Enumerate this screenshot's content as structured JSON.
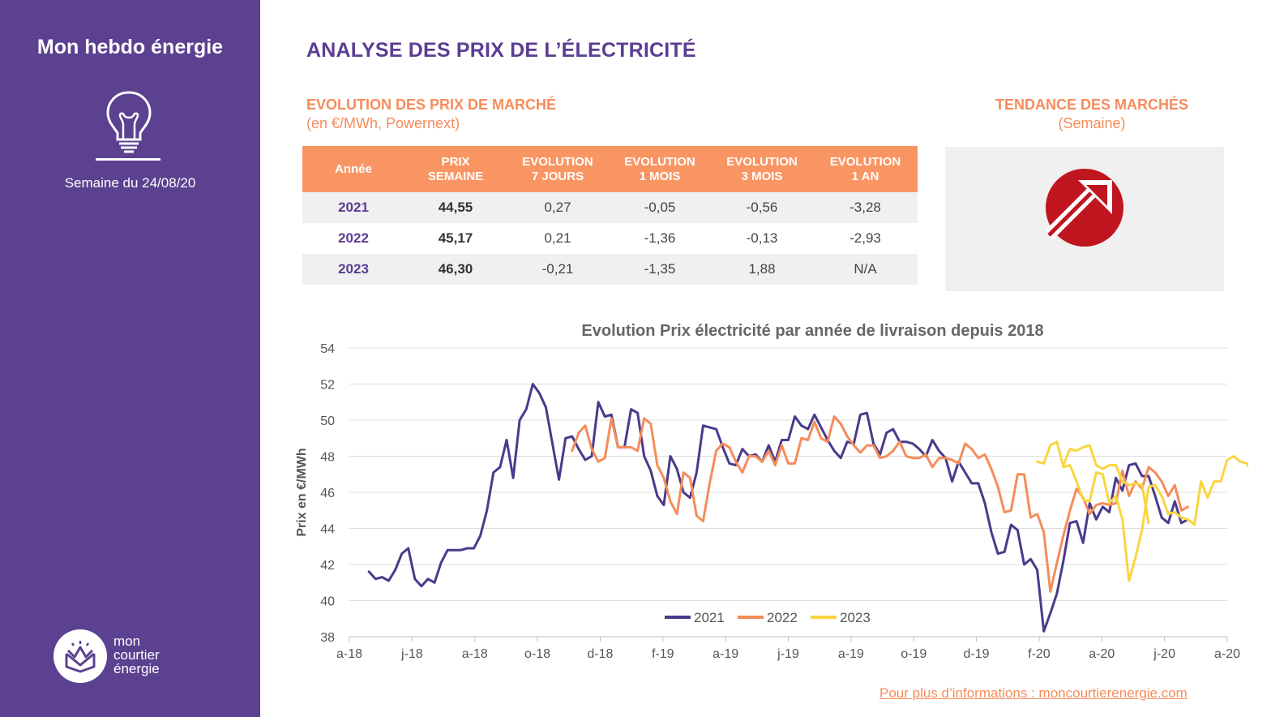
{
  "sidebar": {
    "title": "Mon hebdo énergie",
    "week_label": "Semaine du 24/08/20",
    "logo_lines": [
      "mon",
      "courtier",
      "énergie"
    ],
    "icons": {
      "bulb": "lightbulb-icon",
      "logo": "envelope-crown-logo-icon"
    }
  },
  "header": {
    "title": "ANALYSE DES PRIX DE L’ÉLECTRICITÉ"
  },
  "market": {
    "title": "EVOLUTION DES PRIX DE MARCHÉ",
    "subtitle": "(en €/MWh, Powernext)",
    "columns": [
      [
        "Année"
      ],
      [
        "PRIX",
        "SEMAINE"
      ],
      [
        "EVOLUTION",
        "7 JOURS"
      ],
      [
        "EVOLUTION",
        "1 MOIS"
      ],
      [
        "EVOLUTION",
        "3 MOIS"
      ],
      [
        "EVOLUTION",
        "1 AN"
      ]
    ],
    "rows": [
      [
        "2021",
        "44,55",
        "0,27",
        "-0,05",
        "-0,56",
        "-3,28"
      ],
      [
        "2022",
        "45,17",
        "0,21",
        "-1,36",
        "-0,13",
        "-2,93"
      ],
      [
        "2023",
        "46,30",
        "-0,21",
        "-1,35",
        "1,88",
        "N/A"
      ]
    ]
  },
  "trend": {
    "title": "TENDANCE DES MARCHÉS",
    "subtitle": "(Semaine)",
    "direction": "up",
    "icon": "arrow-up-right-icon",
    "color": "#c0161f"
  },
  "footer": {
    "link_text": "Pour plus d’informations : moncourtierenergie.com"
  },
  "colors": {
    "sidebar": "#5b4190",
    "title": "#5b3d93",
    "accent": "#f58c5b",
    "table_header": "#f99563",
    "series_2021": "#4a3a8c",
    "series_2022": "#f58c5b",
    "series_2023": "#f9d541"
  },
  "chart_data": {
    "type": "line",
    "title": "Evolution Prix électricité par année de livraison depuis 2018",
    "xlabel": "",
    "ylabel": "Prix en €/MWh",
    "ylim": [
      38,
      54
    ],
    "yticks": [
      38,
      40,
      42,
      44,
      46,
      48,
      50,
      52,
      54
    ],
    "xticks": [
      "a-18",
      "j-18",
      "a-18",
      "o-18",
      "d-18",
      "f-19",
      "a-19",
      "j-19",
      "a-19",
      "o-19",
      "d-19",
      "f-20",
      "a-20",
      "j-20",
      "a-20"
    ],
    "x_range": [
      0,
      134
    ],
    "grid": true,
    "legend_position": "bottom",
    "series": [
      {
        "name": "2021",
        "color": "#4a3a8c",
        "start": 3,
        "values": [
          41.6,
          41.2,
          41.3,
          41.1,
          41.7,
          42.6,
          42.9,
          41.2,
          40.8,
          41.2,
          41.0,
          42.1,
          42.8,
          42.8,
          42.8,
          42.9,
          42.9,
          43.6,
          45.0,
          47.1,
          47.4,
          48.9,
          46.8,
          50.0,
          50.6,
          52.0,
          51.5,
          50.7,
          48.7,
          46.7,
          49.0,
          49.1,
          48.4,
          47.8,
          48.0,
          51.0,
          50.2,
          50.3,
          48.5,
          48.5,
          50.6,
          50.4,
          48.0,
          47.2,
          45.8,
          45.3,
          48.0,
          47.3,
          46.0,
          45.7,
          47.1,
          49.7,
          49.6,
          49.5,
          48.5,
          47.6,
          47.5,
          48.4,
          48.0,
          48.1,
          47.7,
          48.6,
          47.7,
          48.9,
          48.9,
          50.2,
          49.7,
          49.5,
          50.3,
          49.6,
          48.9,
          48.3,
          47.9,
          48.8,
          48.7,
          50.3,
          50.4,
          48.7,
          48.1,
          49.3,
          49.5,
          48.8,
          48.8,
          48.7,
          48.4,
          48.0,
          48.9,
          48.3,
          47.9,
          46.6,
          47.7,
          47.1,
          46.5,
          46.5,
          45.4,
          43.8,
          42.6,
          42.7,
          44.2,
          43.9,
          42.0,
          42.3,
          41.7,
          38.3,
          39.3,
          40.4,
          42.2,
          44.3,
          44.4,
          43.2,
          45.4,
          44.5,
          45.2,
          44.9,
          46.8,
          46.1,
          47.5,
          47.6,
          46.9,
          46.9,
          45.8,
          44.6,
          44.3,
          45.5,
          44.3,
          44.5
        ]
      },
      {
        "name": "2022",
        "color": "#f58c5b",
        "start": 34,
        "values": [
          48.3,
          49.3,
          49.7,
          48.4,
          47.7,
          47.9,
          50.1,
          48.5,
          48.5,
          48.5,
          48.3,
          50.1,
          49.8,
          47.5,
          46.8,
          45.5,
          44.8,
          47.1,
          46.8,
          44.7,
          44.4,
          46.5,
          48.3,
          48.7,
          48.5,
          47.7,
          47.1,
          48.0,
          48.0,
          47.7,
          48.3,
          47.5,
          48.6,
          47.6,
          47.6,
          49.0,
          48.9,
          49.9,
          49.0,
          48.8,
          50.2,
          49.8,
          49.1,
          48.6,
          48.2,
          48.6,
          48.6,
          47.9,
          48.0,
          48.3,
          48.8,
          48.0,
          47.9,
          47.9,
          48.1,
          47.4,
          47.9,
          47.9,
          47.8,
          47.6,
          48.7,
          48.4,
          47.9,
          48.1,
          47.3,
          46.3,
          44.9,
          45.0,
          47.0,
          47.0,
          44.6,
          44.8,
          43.8,
          40.5,
          42.1,
          43.6,
          45.0,
          46.2,
          45.7,
          44.8,
          45.3,
          45.4,
          45.3,
          45.4,
          47.2,
          45.8,
          46.6,
          46.2,
          47.4,
          47.1,
          46.6,
          45.8,
          46.4,
          45.0,
          45.2
        ]
      },
      {
        "name": "2023",
        "color": "#f9d541",
        "start": 109,
        "values": [
          47.5,
          48.4,
          48.3,
          48.5,
          48.6,
          47.5,
          47.3,
          47.5,
          47.5,
          46.6,
          46.4,
          46.5,
          46.4,
          44.3
        ]
      },
      {
        "name": "2023",
        "color": "#f9d541",
        "start": 105,
        "values": [
          47.7,
          47.6,
          48.6,
          48.8,
          47.4,
          47.5,
          46.6,
          45.6,
          45.5,
          47.1,
          47.0,
          45.4,
          45.8,
          44.5,
          41.1,
          42.4,
          43.9,
          46.3,
          46.4,
          45.8,
          44.8,
          44.9,
          44.6,
          44.5,
          44.2,
          46.6,
          45.7,
          46.6,
          46.6,
          47.8,
          48.0,
          47.7,
          47.6,
          47.0,
          46.9,
          46.5,
          46.3
        ]
      }
    ]
  }
}
